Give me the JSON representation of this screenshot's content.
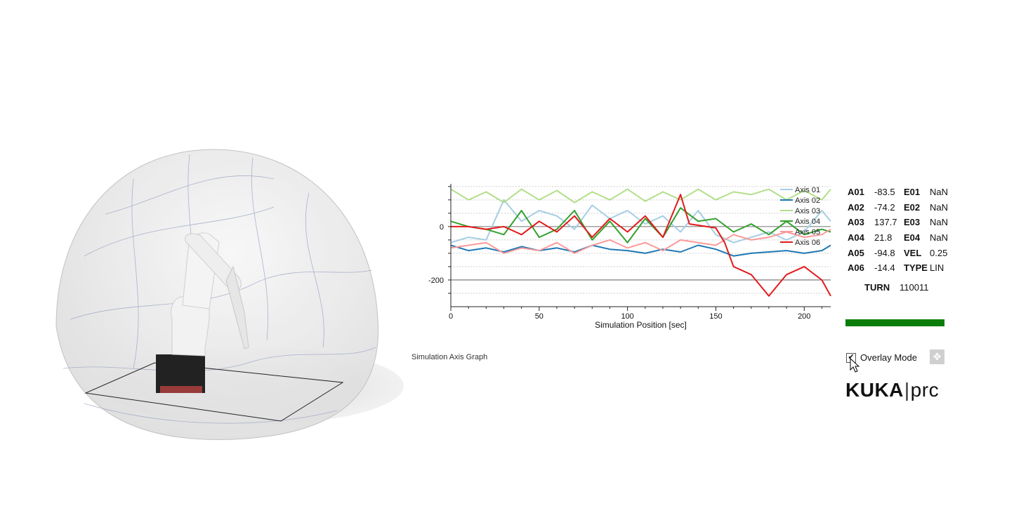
{
  "graph": {
    "caption": "Simulation Axis Graph",
    "chart_data": {
      "type": "line",
      "xlabel": "Simulation Position [sec]",
      "ylabel": "",
      "xlim": [
        0,
        215
      ],
      "ylim": [
        -300,
        160
      ],
      "x_ticks": [
        0,
        50,
        100,
        150,
        200
      ],
      "y_ticks": [
        0,
        -200
      ],
      "grid": true,
      "legend_position": "top-right",
      "series": [
        {
          "name": "Axis 01",
          "color": "#a6cee3",
          "x": [
            0,
            10,
            20,
            30,
            40,
            50,
            60,
            70,
            80,
            90,
            100,
            110,
            120,
            130,
            140,
            150,
            160,
            170,
            180,
            190,
            200,
            210,
            215
          ],
          "y": [
            -60,
            -40,
            -50,
            100,
            20,
            60,
            40,
            -10,
            80,
            30,
            60,
            10,
            40,
            -20,
            60,
            -30,
            -60,
            -40,
            -20,
            -50,
            -20,
            60,
            20
          ]
        },
        {
          "name": "Axis 02",
          "color": "#1f78b4",
          "x": [
            0,
            10,
            20,
            30,
            40,
            50,
            60,
            70,
            80,
            90,
            100,
            110,
            120,
            130,
            140,
            150,
            160,
            170,
            180,
            190,
            200,
            210,
            215
          ],
          "y": [
            -70,
            -90,
            -80,
            -95,
            -75,
            -90,
            -80,
            -95,
            -70,
            -85,
            -90,
            -100,
            -85,
            -95,
            -70,
            -85,
            -110,
            -100,
            -95,
            -90,
            -100,
            -90,
            -70
          ]
        },
        {
          "name": "Axis 03",
          "color": "#b2df8a",
          "x": [
            0,
            10,
            20,
            30,
            40,
            50,
            60,
            70,
            80,
            90,
            100,
            110,
            120,
            130,
            140,
            150,
            160,
            170,
            180,
            190,
            200,
            210,
            215
          ],
          "y": [
            140,
            100,
            130,
            90,
            140,
            100,
            135,
            90,
            130,
            100,
            140,
            95,
            130,
            100,
            140,
            100,
            130,
            120,
            140,
            100,
            135,
            100,
            140
          ]
        },
        {
          "name": "Axis 04",
          "color": "#33a02c",
          "x": [
            0,
            10,
            20,
            30,
            40,
            50,
            60,
            70,
            80,
            90,
            100,
            110,
            120,
            130,
            140,
            150,
            160,
            170,
            180,
            190,
            200,
            210,
            215
          ],
          "y": [
            20,
            0,
            -10,
            -30,
            60,
            -40,
            -10,
            60,
            -50,
            20,
            -60,
            30,
            -40,
            70,
            20,
            30,
            -20,
            10,
            -30,
            20,
            -30,
            -10,
            -20
          ]
        },
        {
          "name": "Axis 05",
          "color": "#fb9a99",
          "x": [
            0,
            10,
            20,
            30,
            40,
            50,
            60,
            70,
            80,
            90,
            100,
            110,
            120,
            130,
            140,
            150,
            160,
            170,
            180,
            190,
            200,
            210,
            215
          ],
          "y": [
            -80,
            -70,
            -60,
            -100,
            -80,
            -90,
            -60,
            -100,
            -70,
            -50,
            -80,
            -60,
            -90,
            -50,
            -60,
            -70,
            -30,
            -50,
            -40,
            -20,
            -40,
            -30,
            -10
          ]
        },
        {
          "name": "Axis 06",
          "color": "#e31a1c",
          "x": [
            0,
            10,
            20,
            30,
            40,
            50,
            60,
            70,
            80,
            90,
            100,
            110,
            120,
            130,
            135,
            150,
            155,
            160,
            170,
            180,
            190,
            200,
            210,
            215
          ],
          "y": [
            0,
            0,
            -10,
            0,
            -30,
            20,
            -20,
            40,
            -40,
            30,
            -20,
            40,
            -40,
            120,
            10,
            -5,
            -60,
            -150,
            -180,
            -260,
            -180,
            -150,
            -200,
            -260
          ]
        }
      ]
    }
  },
  "readout": {
    "rows": [
      {
        "k1": "A01",
        "v1": "-83.5",
        "k2": "E01",
        "v2": "NaN"
      },
      {
        "k1": "A02",
        "v1": "-74.2",
        "k2": "E02",
        "v2": "NaN"
      },
      {
        "k1": "A03",
        "v1": "137.7",
        "k2": "E03",
        "v2": "NaN"
      },
      {
        "k1": "A04",
        "v1": "21.8",
        "k2": "E04",
        "v2": "NaN"
      },
      {
        "k1": "A05",
        "v1": "-94.8",
        "k2": "VEL",
        "v2": "0.25"
      },
      {
        "k1": "A06",
        "v1": "-14.4",
        "k2": "TYPE",
        "v2": "LIN"
      }
    ],
    "turn_label": "TURN",
    "turn_value": "110011"
  },
  "progress": {
    "fraction": 1.0,
    "color": "#0b7d0b"
  },
  "overlay": {
    "label": "Overlay Mode",
    "checked": true
  },
  "move_button": {
    "icon": "move-icon"
  },
  "logo": {
    "bold": "KUKA",
    "separator": "|",
    "light": "prc"
  }
}
